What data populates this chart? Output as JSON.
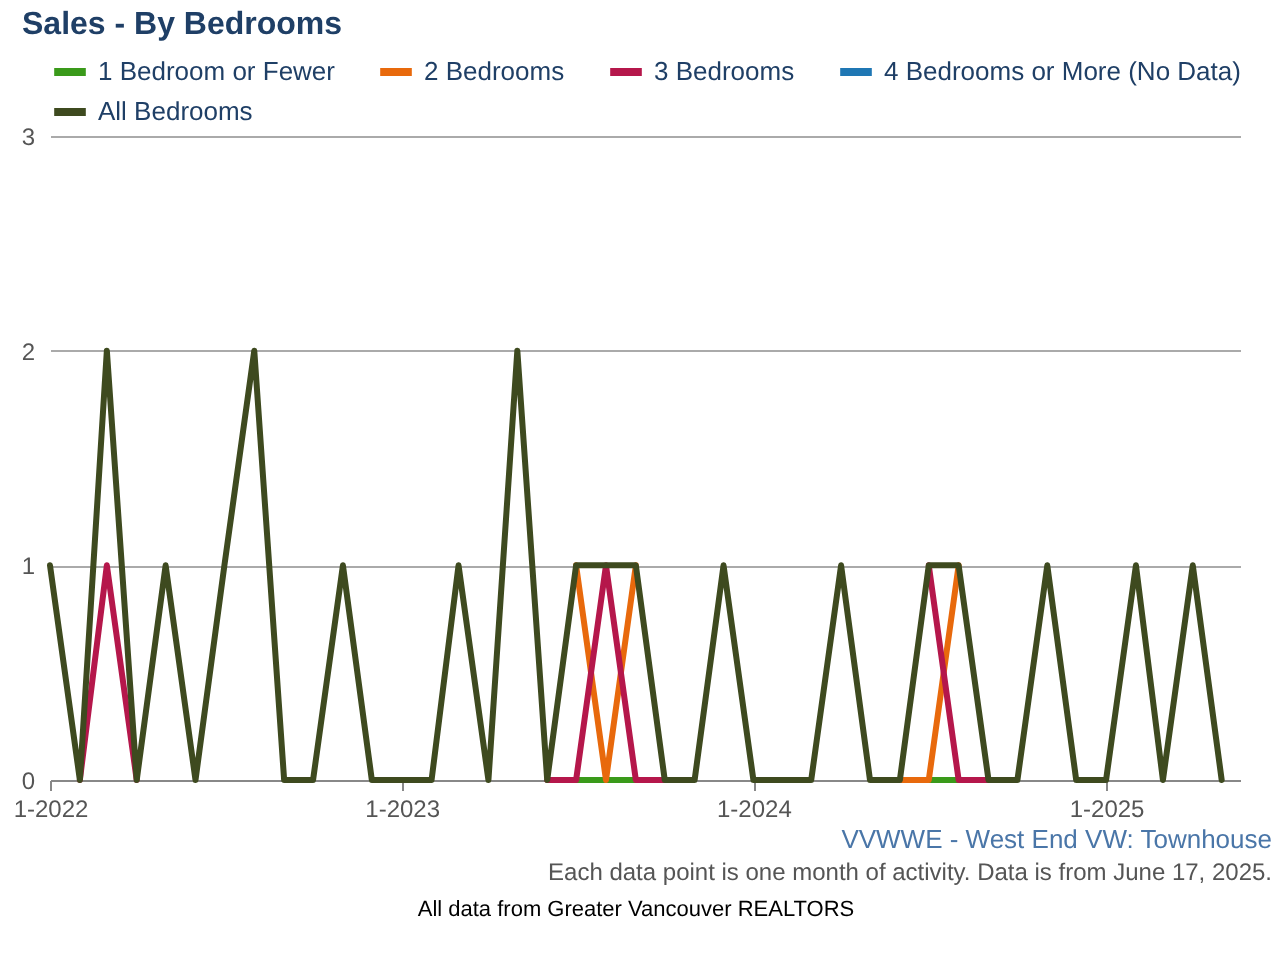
{
  "chart_data": {
    "type": "line",
    "title": "Sales - By Bedrooms",
    "x": [
      "2022-01",
      "2022-02",
      "2022-03",
      "2022-04",
      "2022-05",
      "2022-06",
      "2022-07",
      "2022-08",
      "2022-09",
      "2022-10",
      "2022-11",
      "2022-12",
      "2023-01",
      "2023-02",
      "2023-03",
      "2023-04",
      "2023-05",
      "2023-06",
      "2023-07",
      "2023-08",
      "2023-09",
      "2023-10",
      "2023-11",
      "2023-12",
      "2024-01",
      "2024-02",
      "2024-03",
      "2024-04",
      "2024-05",
      "2024-06",
      "2024-07",
      "2024-08",
      "2024-09",
      "2024-10",
      "2024-11",
      "2024-12",
      "2025-01",
      "2025-02",
      "2025-03",
      "2025-04",
      "2025-05"
    ],
    "series": [
      {
        "name": "1 Bedroom or Fewer",
        "color": "#3a9a1a",
        "values": [
          null,
          null,
          null,
          null,
          null,
          null,
          null,
          null,
          null,
          null,
          null,
          null,
          null,
          null,
          null,
          null,
          null,
          null,
          0,
          0,
          0,
          null,
          null,
          null,
          null,
          null,
          null,
          null,
          null,
          null,
          0,
          0,
          null,
          null,
          null,
          null,
          null,
          null,
          null,
          null,
          null
        ]
      },
      {
        "name": "2 Bedrooms",
        "color": "#e8690c",
        "values": [
          null,
          null,
          null,
          null,
          null,
          null,
          null,
          null,
          null,
          null,
          null,
          null,
          null,
          null,
          null,
          null,
          null,
          null,
          1,
          0,
          1,
          null,
          null,
          null,
          null,
          null,
          null,
          null,
          null,
          0,
          0,
          1,
          null,
          null,
          null,
          null,
          null,
          null,
          null,
          null,
          null
        ]
      },
      {
        "name": "3 Bedrooms",
        "color": "#b5174b",
        "values": [
          null,
          0,
          1,
          0,
          null,
          null,
          null,
          null,
          null,
          null,
          null,
          null,
          null,
          null,
          null,
          null,
          null,
          0,
          0,
          1,
          0,
          0,
          null,
          null,
          null,
          null,
          null,
          null,
          null,
          null,
          1,
          0,
          0,
          null,
          null,
          null,
          null,
          null,
          null,
          null,
          null
        ]
      },
      {
        "name": "4 Bedrooms or More (No Data)",
        "color": "#1f77b4",
        "values": [
          null,
          null,
          null,
          null,
          null,
          null,
          null,
          null,
          null,
          null,
          null,
          null,
          null,
          null,
          null,
          null,
          null,
          null,
          null,
          null,
          null,
          null,
          null,
          null,
          null,
          null,
          null,
          null,
          null,
          null,
          null,
          null,
          null,
          null,
          null,
          null,
          null,
          null,
          null,
          null,
          null
        ]
      },
      {
        "name": "All Bedrooms",
        "color": "#3e4a1f",
        "values": [
          1,
          0,
          2,
          0,
          1,
          0,
          1,
          2,
          0,
          0,
          1,
          0,
          0,
          0,
          1,
          0,
          2,
          0,
          1,
          1,
          1,
          0,
          0,
          1,
          0,
          0,
          0,
          1,
          0,
          0,
          1,
          1,
          0,
          0,
          1,
          0,
          0,
          1,
          0,
          1,
          0
        ]
      }
    ],
    "xlim": [
      "2022-01",
      "2025-05-20"
    ],
    "xticks": [
      {
        "value": "2022-01",
        "label": "1-2022"
      },
      {
        "value": "2023-01",
        "label": "1-2023"
      },
      {
        "value": "2024-01",
        "label": "1-2024"
      },
      {
        "value": "2025-01",
        "label": "1-2025"
      }
    ],
    "ylim": [
      0,
      3
    ],
    "yticks": [
      0,
      1,
      2,
      3
    ],
    "grid": "y",
    "legend": "top left",
    "line_style": "solid",
    "marker": "none",
    "annotations": [
      "VVWWE - West End VW: Townhouse",
      "Each data point is one month of activity. Data is from June 17, 2025.",
      "All data from Greater Vancouver REALTORS"
    ]
  }
}
